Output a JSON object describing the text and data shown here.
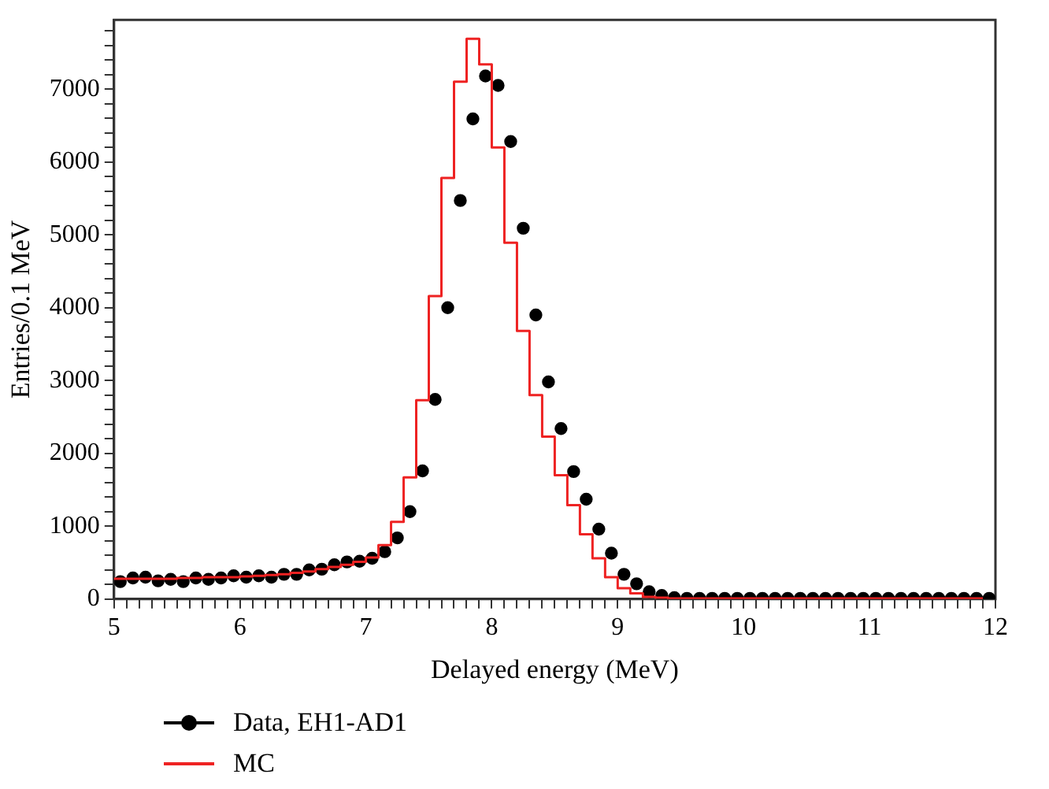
{
  "chart_data": {
    "type": "scatter",
    "xlabel": "Delayed energy (MeV)",
    "ylabel": "Entries/0.1 MeV",
    "xlim": [
      5,
      12
    ],
    "ylim": [
      0,
      7950
    ],
    "xticks": [
      5,
      {
        "value": 5.1,
        "label": null
      },
      {
        "value": 5.2,
        "label": null
      },
      {
        "value": 5.3,
        "label": null
      },
      {
        "value": 5.4,
        "label": null
      },
      {
        "value": 5.5,
        "label": null
      },
      {
        "value": 5.6,
        "label": null
      },
      {
        "value": 5.7,
        "label": null
      },
      {
        "value": 5.8,
        "label": null
      },
      {
        "value": 5.9,
        "label": null
      },
      6,
      {
        "value": 6.1,
        "label": null
      },
      {
        "value": 6.2,
        "label": null
      },
      {
        "value": 6.3,
        "label": null
      },
      {
        "value": 6.4,
        "label": null
      },
      {
        "value": 6.5,
        "label": null
      },
      {
        "value": 6.6,
        "label": null
      },
      {
        "value": 6.7,
        "label": null
      },
      {
        "value": 6.8,
        "label": null
      },
      {
        "value": 6.9,
        "label": null
      },
      7,
      {
        "value": 7.1,
        "label": null
      },
      {
        "value": 7.2,
        "label": null
      },
      {
        "value": 7.3,
        "label": null
      },
      {
        "value": 7.4,
        "label": null
      },
      {
        "value": 7.5,
        "label": null
      },
      {
        "value": 7.6,
        "label": null
      },
      {
        "value": 7.7,
        "label": null
      },
      {
        "value": 7.8,
        "label": null
      },
      {
        "value": 7.9,
        "label": null
      },
      8,
      {
        "value": 8.1,
        "label": null
      },
      {
        "value": 8.2,
        "label": null
      },
      {
        "value": 8.3,
        "label": null
      },
      {
        "value": 8.4,
        "label": null
      },
      {
        "value": 8.5,
        "label": null
      },
      {
        "value": 8.6,
        "label": null
      },
      {
        "value": 8.7,
        "label": null
      },
      {
        "value": 8.8,
        "label": null
      },
      {
        "value": 8.9,
        "label": null
      },
      9,
      {
        "value": 9.1,
        "label": null
      },
      {
        "value": 9.2,
        "label": null
      },
      {
        "value": 9.3,
        "label": null
      },
      {
        "value": 9.4,
        "label": null
      },
      {
        "value": 9.5,
        "label": null
      },
      {
        "value": 9.6,
        "label": null
      },
      {
        "value": 9.7,
        "label": null
      },
      {
        "value": 9.8,
        "label": null
      },
      {
        "value": 9.9,
        "label": null
      },
      10,
      {
        "value": 10.1,
        "label": null
      },
      {
        "value": 10.2,
        "label": null
      },
      {
        "value": 10.3,
        "label": null
      },
      {
        "value": 10.4,
        "label": null
      },
      {
        "value": 10.5,
        "label": null
      },
      {
        "value": 10.6,
        "label": null
      },
      {
        "value": 10.7,
        "label": null
      },
      {
        "value": 10.8,
        "label": null
      },
      {
        "value": 10.9,
        "label": null
      },
      11,
      {
        "value": 11.1,
        "label": null
      },
      {
        "value": 11.2,
        "label": null
      },
      {
        "value": 11.3,
        "label": null
      },
      {
        "value": 11.4,
        "label": null
      },
      {
        "value": 11.5,
        "label": null
      },
      {
        "value": 11.6,
        "label": null
      },
      {
        "value": 11.7,
        "label": null
      },
      {
        "value": 11.8,
        "label": null
      },
      {
        "value": 11.9,
        "label": null
      },
      12
    ],
    "yticks": [
      0,
      {
        "value": 200,
        "label": null
      },
      {
        "value": 400,
        "label": null
      },
      {
        "value": 600,
        "label": null
      },
      {
        "value": 800,
        "label": null
      },
      1000,
      {
        "value": 1200,
        "label": null
      },
      {
        "value": 1400,
        "label": null
      },
      {
        "value": 1600,
        "label": null
      },
      {
        "value": 1800,
        "label": null
      },
      2000,
      {
        "value": 2200,
        "label": null
      },
      {
        "value": 2400,
        "label": null
      },
      {
        "value": 2600,
        "label": null
      },
      {
        "value": 2800,
        "label": null
      },
      3000,
      {
        "value": 3200,
        "label": null
      },
      {
        "value": 3400,
        "label": null
      },
      {
        "value": 3600,
        "label": null
      },
      {
        "value": 3800,
        "label": null
      },
      4000,
      {
        "value": 4200,
        "label": null
      },
      {
        "value": 4400,
        "label": null
      },
      {
        "value": 4600,
        "label": null
      },
      {
        "value": 4800,
        "label": null
      },
      5000,
      {
        "value": 5200,
        "label": null
      },
      {
        "value": 5400,
        "label": null
      },
      {
        "value": 5600,
        "label": null
      },
      {
        "value": 5800,
        "label": null
      },
      6000,
      {
        "value": 6200,
        "label": null
      },
      {
        "value": 6400,
        "label": null
      },
      {
        "value": 6600,
        "label": null
      },
      {
        "value": 6800,
        "label": null
      },
      7000,
      {
        "value": 7200,
        "label": null
      },
      {
        "value": 7400,
        "label": null
      },
      {
        "value": 7600,
        "label": null
      },
      {
        "value": 7800,
        "label": null
      }
    ],
    "grid": false,
    "legend": "bottom left",
    "series": [
      {
        "name": "Data, EH1-AD1",
        "color": "#000000",
        "marker": "circle",
        "x": [
          5.05,
          5.15,
          5.25,
          5.35,
          5.45,
          5.55,
          5.65,
          5.75,
          5.85,
          5.95,
          6.05,
          6.15,
          6.25,
          6.35,
          6.45,
          6.55,
          6.65,
          6.75,
          6.85,
          6.95,
          7.05,
          7.15,
          7.25,
          7.35,
          7.45,
          7.55,
          7.65,
          7.75,
          7.85,
          7.95,
          8.05,
          8.15,
          8.25,
          8.35,
          8.45,
          8.55,
          8.65,
          8.75,
          8.85,
          8.95,
          9.05,
          9.15,
          9.25,
          9.35,
          9.45,
          9.55,
          9.65,
          9.75,
          9.85,
          9.95,
          10.05,
          10.15,
          10.25,
          10.35,
          10.45,
          10.55,
          10.65,
          10.75,
          10.85,
          10.95,
          11.05,
          11.15,
          11.25,
          11.35,
          11.45,
          11.55,
          11.65,
          11.75,
          11.85,
          11.95
        ],
        "values": [
          240,
          290,
          300,
          250,
          270,
          240,
          290,
          270,
          290,
          320,
          300,
          320,
          300,
          340,
          340,
          400,
          410,
          470,
          510,
          520,
          560,
          650,
          840,
          1200,
          1760,
          2740,
          4000,
          5470,
          6590,
          7180,
          7050,
          6280,
          5090,
          3900,
          2980,
          2340,
          1750,
          1370,
          960,
          630,
          340,
          210,
          100,
          50,
          20,
          10,
          10,
          10,
          10,
          10,
          10,
          10,
          10,
          10,
          10,
          10,
          10,
          10,
          10,
          10,
          10,
          10,
          10,
          10,
          10,
          10,
          10,
          10,
          10,
          10
        ]
      },
      {
        "name": "MC",
        "type": "step",
        "color": "#ee2222",
        "marker": "none",
        "x": [
          5.0,
          5.1,
          5.2,
          5.3,
          5.4,
          5.5,
          5.6,
          5.7,
          5.8,
          5.9,
          6.0,
          6.1,
          6.2,
          6.3,
          6.4,
          6.5,
          6.6,
          6.7,
          6.8,
          6.9,
          7.0,
          7.1,
          7.2,
          7.3,
          7.4,
          7.5,
          7.6,
          7.7,
          7.8,
          7.9,
          8.0,
          8.1,
          8.2,
          8.3,
          8.4,
          8.5,
          8.6,
          8.7,
          8.8,
          8.9,
          9.0,
          9.1,
          9.2,
          9.3,
          9.4,
          9.5,
          9.6,
          9.7,
          9.8,
          9.9,
          10.0,
          10.1,
          10.2,
          10.3,
          10.4,
          10.5,
          10.6,
          10.7,
          10.8,
          10.9,
          11.0,
          11.1,
          11.2,
          11.3,
          11.4,
          11.5,
          11.6,
          11.7,
          11.8,
          11.9
        ],
        "values": [
          270,
          280,
          280,
          280,
          280,
          280,
          290,
          290,
          300,
          300,
          300,
          310,
          320,
          330,
          340,
          360,
          380,
          410,
          440,
          470,
          510,
          570,
          740,
          1060,
          1670,
          2730,
          4160,
          5780,
          7100,
          7690,
          7340,
          6200,
          4890,
          3680,
          2800,
          2230,
          1700,
          1290,
          890,
          560,
          300,
          150,
          80,
          30,
          20,
          10,
          10,
          10,
          10,
          10,
          10,
          10,
          10,
          10,
          10,
          10,
          10,
          10,
          10,
          10,
          10,
          10,
          10,
          10,
          10,
          10,
          10,
          10,
          10,
          10
        ]
      }
    ]
  }
}
